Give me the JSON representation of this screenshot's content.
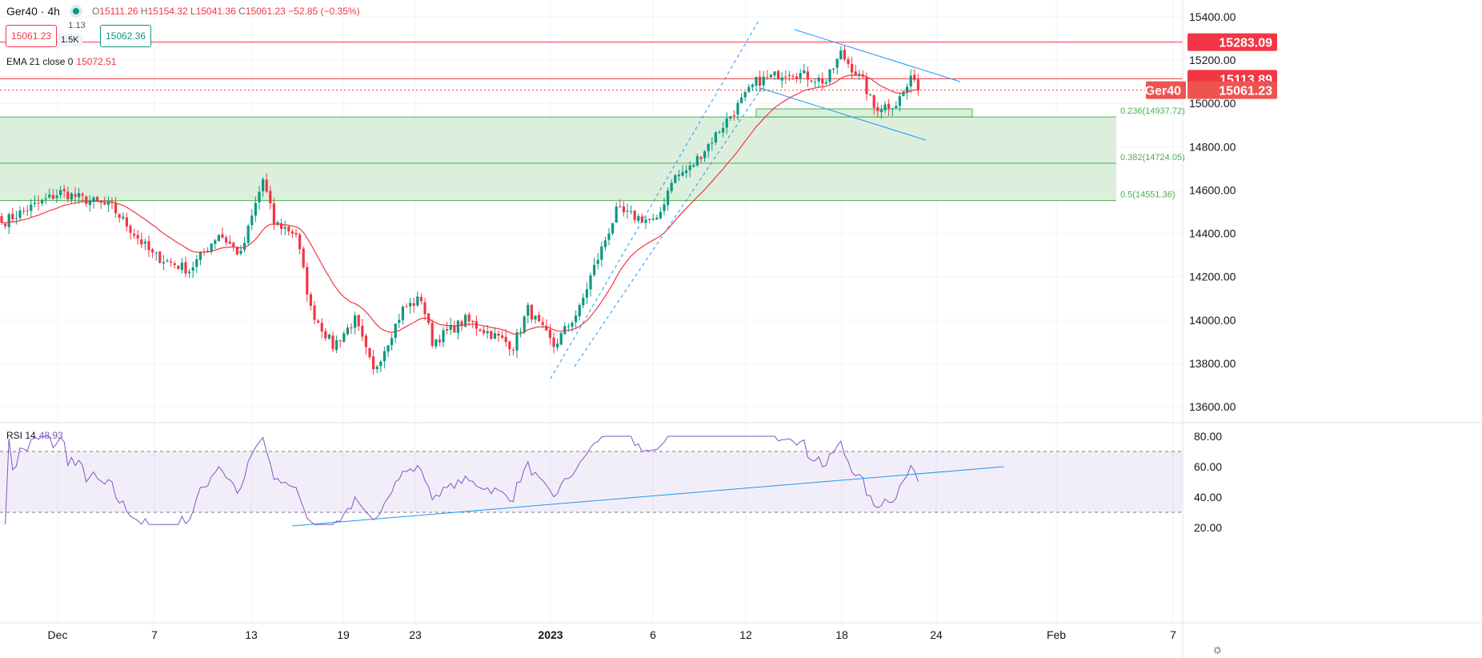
{
  "header": {
    "symbol": "Ger40",
    "interval": "4h",
    "open_label": "O",
    "open": "15111.26",
    "high_label": "H",
    "high": "15154.32",
    "low_label": "L",
    "low": "15041.36",
    "close_label": "C",
    "close": "15061.23",
    "change": "−52.85 (−0.35%)"
  },
  "trade": {
    "sell": "15061.23",
    "spread": "1.13",
    "volume": "1.5K",
    "buy": "15062.36"
  },
  "indicators": {
    "ema_label": "EMA 21 close 0",
    "ema_value": "15072.51",
    "rsi_label": "RSI 14",
    "rsi_value": "48.93"
  },
  "colors": {
    "up": "#089981",
    "down": "#f23645",
    "ema": "#f23645",
    "rsi": "#7e57c2",
    "trend": "#2196f3",
    "fib": "#4caf50",
    "fib_fill": "#dcefdc"
  },
  "chart_data": {
    "type": "candlestick",
    "price_ticks": [
      "15400.00",
      "15200.00",
      "15000.00",
      "14800.00",
      "14600.00",
      "14400.00",
      "14200.00",
      "14000.00",
      "13800.00",
      "13600.00"
    ],
    "price_range": [
      13600,
      15400
    ],
    "rsi_ticks": [
      "80.00",
      "60.00",
      "40.00",
      "20.00"
    ],
    "rsi_range": [
      20,
      80
    ],
    "rsi_bands": [
      30,
      70
    ],
    "x_ticks": [
      "Dec",
      "7",
      "13",
      "19",
      "23",
      "2023",
      "6",
      "12",
      "18",
      "24",
      "Feb",
      "7"
    ],
    "close_waypoints": [
      [
        0,
        14450
      ],
      [
        16,
        14590
      ],
      [
        30,
        14520
      ],
      [
        41,
        14300
      ],
      [
        51,
        14230
      ],
      [
        59,
        14400
      ],
      [
        65,
        14300
      ],
      [
        71,
        14650
      ],
      [
        74,
        14450
      ],
      [
        80,
        14400
      ],
      [
        84,
        14050
      ],
      [
        90,
        13880
      ],
      [
        96,
        14000
      ],
      [
        101,
        13760
      ],
      [
        109,
        14050
      ],
      [
        114,
        14100
      ],
      [
        117,
        13900
      ],
      [
        126,
        14000
      ],
      [
        139,
        13880
      ],
      [
        143,
        14050
      ],
      [
        150,
        13880
      ],
      [
        157,
        14050
      ],
      [
        160,
        14200
      ],
      [
        167,
        14500
      ],
      [
        178,
        14450
      ],
      [
        182,
        14650
      ],
      [
        187,
        14700
      ],
      [
        196,
        14900
      ],
      [
        205,
        15100
      ],
      [
        214,
        15150
      ],
      [
        224,
        15100
      ],
      [
        228,
        15230
      ],
      [
        234,
        15100
      ],
      [
        237,
        14980
      ],
      [
        243,
        15000
      ],
      [
        248,
        15130
      ],
      [
        249,
        15061.23
      ]
    ],
    "levels": [
      {
        "label": "15283.09",
        "value": 15283.09
      },
      {
        "label": "15113.89",
        "value": 15113.89
      }
    ],
    "last_price": {
      "symbol": "Ger40",
      "label": "15061.23",
      "value": 15061.23
    },
    "fib": [
      {
        "label": "0.236(14937.72)",
        "value": 14937.72
      },
      {
        "label": "0.382(14724.05)",
        "value": 14724.05
      },
      {
        "label": "0.5(14551.36)",
        "value": 14551.36
      }
    ]
  }
}
